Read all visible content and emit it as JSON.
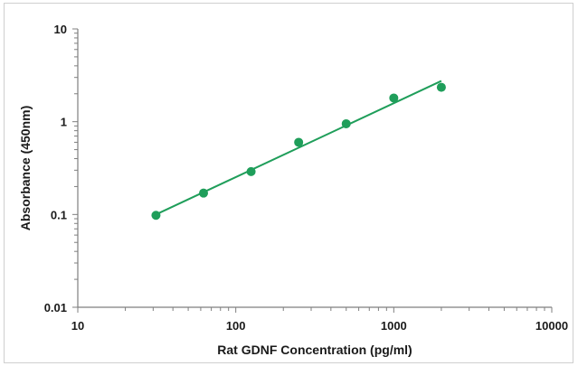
{
  "chart_data": {
    "type": "scatter",
    "title": "",
    "xlabel": "Rat GDNF Concentration (pg/ml)",
    "ylabel": "Absorbance (450nm)",
    "x_scale": "log",
    "y_scale": "log",
    "xlim": [
      10,
      10000
    ],
    "ylim": [
      0.01,
      10
    ],
    "x_tick_labels": [
      "10",
      "100",
      "1000",
      "10000"
    ],
    "y_tick_labels": [
      "0.01",
      "0.1",
      "1",
      "10"
    ],
    "grid": false,
    "colors": {
      "points": "#1f9e5a",
      "fit_line": "#1f9e5a",
      "axis": "#7f7f7f"
    },
    "series": [
      {
        "x": [
          31.25,
          62.5,
          125,
          250,
          500,
          1000,
          2000
        ],
        "y": [
          0.098,
          0.17,
          0.29,
          0.6,
          0.95,
          1.8,
          2.35
        ]
      }
    ],
    "trendline": {
      "type": "power",
      "x_start": 31.25,
      "x_end": 2000,
      "y_start": 0.1,
      "y_end": 2.75
    }
  }
}
